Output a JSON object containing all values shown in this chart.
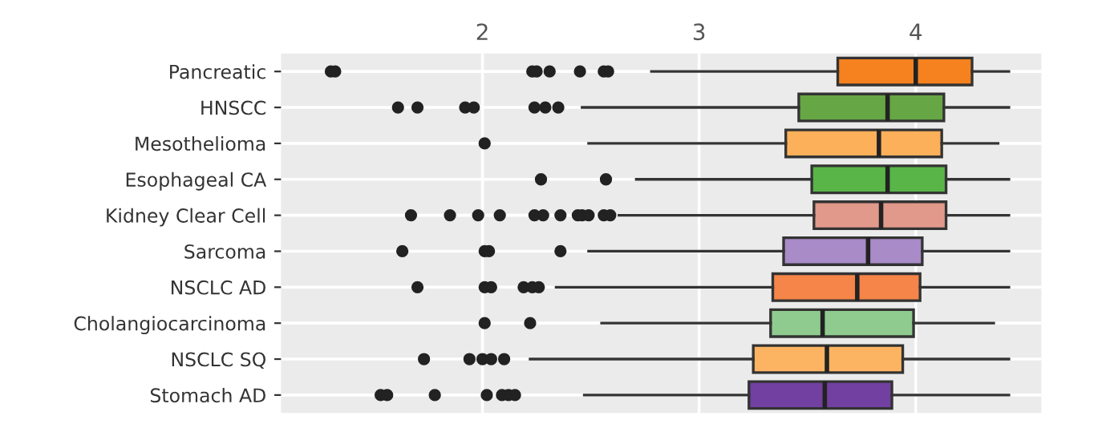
{
  "chart_data": {
    "type": "box",
    "orientation": "horizontal",
    "categories": [
      "Pancreatic",
      "HNSCC",
      "Mesothelioma",
      "Esophageal CA",
      "Kidney Clear Cell",
      "Sarcoma",
      "NSCLC AD",
      "Cholangiocarcinoma",
      "NSCLC SQ",
      "Stomach AD"
    ],
    "colors": [
      "#f5821f",
      "#66a644",
      "#fdb05a",
      "#59b548",
      "#e0998a",
      "#a98bc8",
      "#f58548",
      "#8fcb8f",
      "#fdb462",
      "#7140a0"
    ],
    "boxes": [
      {
        "low": 2.78,
        "q1": 3.64,
        "median": 4.0,
        "q3": 4.26,
        "high": 4.43,
        "outliers": [
          1.3,
          1.32,
          2.23,
          2.25,
          2.31,
          2.45,
          2.56,
          2.58
        ]
      },
      {
        "low": 2.46,
        "q1": 3.46,
        "median": 3.87,
        "q3": 4.13,
        "high": 4.43,
        "outliers": [
          1.61,
          1.7,
          1.92,
          1.96,
          2.24,
          2.29,
          2.35
        ]
      },
      {
        "low": 2.49,
        "q1": 3.4,
        "median": 3.83,
        "q3": 4.12,
        "high": 4.38,
        "outliers": [
          2.01
        ]
      },
      {
        "low": 2.71,
        "q1": 3.52,
        "median": 3.87,
        "q3": 4.14,
        "high": 4.43,
        "outliers": [
          2.27,
          2.57
        ]
      },
      {
        "low": 2.63,
        "q1": 3.53,
        "median": 3.84,
        "q3": 4.14,
        "high": 4.43,
        "outliers": [
          1.67,
          1.85,
          1.98,
          2.08,
          2.24,
          2.28,
          2.36,
          2.44,
          2.46,
          2.49,
          2.56,
          2.59
        ]
      },
      {
        "low": 2.49,
        "q1": 3.39,
        "median": 3.78,
        "q3": 4.03,
        "high": 4.43,
        "outliers": [
          1.63,
          2.01,
          2.03,
          2.36
        ]
      },
      {
        "low": 2.34,
        "q1": 3.34,
        "median": 3.73,
        "q3": 4.02,
        "high": 4.43,
        "outliers": [
          1.7,
          2.01,
          2.04,
          2.19,
          2.23,
          2.26
        ]
      },
      {
        "low": 2.55,
        "q1": 3.33,
        "median": 3.57,
        "q3": 3.99,
        "high": 4.36,
        "outliers": [
          2.01,
          2.22
        ]
      },
      {
        "low": 2.22,
        "q1": 3.25,
        "median": 3.59,
        "q3": 3.94,
        "high": 4.43,
        "outliers": [
          1.73,
          1.94,
          2.0,
          2.04,
          2.1
        ]
      },
      {
        "low": 2.47,
        "q1": 3.23,
        "median": 3.58,
        "q3": 3.89,
        "high": 4.43,
        "outliers": [
          1.53,
          1.56,
          1.78,
          2.02,
          2.09,
          2.12,
          2.15
        ]
      }
    ],
    "xlim": [
      1.07,
      4.58
    ],
    "xticks": [
      2,
      3,
      4
    ],
    "grid": true,
    "legend": false
  }
}
